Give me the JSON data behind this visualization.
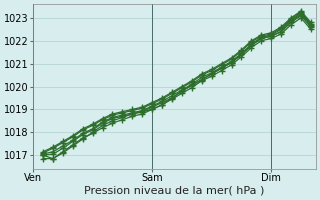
{
  "title": "Pression niveau de la mer( hPa )",
  "bg_color": "#cce8e8",
  "plot_bg": "#d8eeee",
  "grid_color": "#b0d0d0",
  "line_color": "#2d6e2d",
  "ylim": [
    1016.4,
    1023.6
  ],
  "yticks": [
    1017,
    1018,
    1019,
    1020,
    1021,
    1022,
    1023
  ],
  "tick_fontsize": 7,
  "xlabel_fontsize": 8,
  "day_labels": [
    "Ven",
    "Sam",
    "Dim"
  ],
  "day_positions": [
    0,
    48,
    96
  ],
  "total_hours": 114,
  "lines": [
    {
      "x": [
        4,
        8,
        12,
        16,
        20,
        24,
        28,
        32,
        36,
        40,
        44,
        48,
        52,
        56,
        60,
        64,
        68,
        72,
        76,
        80,
        84,
        88,
        92,
        96,
        100,
        104,
        108,
        112
      ],
      "y": [
        1016.85,
        1016.85,
        1017.1,
        1017.4,
        1017.7,
        1018.0,
        1018.3,
        1018.5,
        1018.65,
        1018.8,
        1018.9,
        1019.0,
        1019.2,
        1019.5,
        1019.8,
        1020.05,
        1020.3,
        1020.55,
        1020.8,
        1021.05,
        1021.4,
        1021.8,
        1022.1,
        1022.2,
        1022.4,
        1022.8,
        1023.1,
        1022.6
      ]
    },
    {
      "x": [
        4,
        8,
        12,
        16,
        20,
        24,
        28,
        32,
        36,
        40,
        44,
        48,
        52,
        56,
        60,
        64,
        68,
        72,
        76,
        80,
        84,
        88,
        92,
        96,
        100,
        104,
        108,
        112
      ],
      "y": [
        1017.0,
        1017.05,
        1017.3,
        1017.6,
        1017.9,
        1018.1,
        1018.4,
        1018.6,
        1018.7,
        1018.8,
        1018.9,
        1019.1,
        1019.3,
        1019.5,
        1019.8,
        1020.05,
        1020.3,
        1020.55,
        1020.8,
        1021.05,
        1021.4,
        1021.8,
        1022.1,
        1022.2,
        1022.4,
        1022.85,
        1023.15,
        1022.65
      ]
    },
    {
      "x": [
        4,
        8,
        12,
        16,
        20,
        24,
        28,
        32,
        36,
        40,
        44,
        48,
        52,
        56,
        60,
        64,
        68,
        72,
        76,
        80,
        84,
        88,
        92,
        96,
        100,
        104,
        108,
        112
      ],
      "y": [
        1017.05,
        1017.15,
        1017.4,
        1017.65,
        1017.95,
        1018.15,
        1018.45,
        1018.65,
        1018.75,
        1018.85,
        1018.95,
        1019.15,
        1019.35,
        1019.6,
        1019.85,
        1020.1,
        1020.4,
        1020.6,
        1020.85,
        1021.1,
        1021.45,
        1021.85,
        1022.15,
        1022.25,
        1022.5,
        1022.9,
        1023.2,
        1022.7
      ]
    },
    {
      "x": [
        4,
        8,
        12,
        16,
        20,
        24,
        28,
        32,
        36,
        40,
        44,
        48,
        52,
        56,
        60,
        64,
        68,
        72,
        76,
        80,
        84,
        88,
        92,
        96,
        100,
        104,
        108,
        112
      ],
      "y": [
        1017.1,
        1017.3,
        1017.55,
        1017.8,
        1018.1,
        1018.3,
        1018.55,
        1018.75,
        1018.85,
        1018.95,
        1019.05,
        1019.25,
        1019.45,
        1019.7,
        1019.95,
        1020.2,
        1020.5,
        1020.7,
        1020.95,
        1021.2,
        1021.55,
        1021.95,
        1022.2,
        1022.3,
        1022.55,
        1022.95,
        1023.25,
        1022.75
      ]
    },
    {
      "x": [
        4,
        8,
        12,
        16,
        20,
        24,
        28,
        32,
        36,
        40,
        44,
        48,
        52,
        56,
        60,
        64,
        68,
        72,
        76,
        80,
        84,
        88,
        92,
        96,
        100,
        104,
        108,
        112
      ],
      "y": [
        1017.15,
        1017.35,
        1017.6,
        1017.85,
        1018.15,
        1018.35,
        1018.6,
        1018.8,
        1018.9,
        1019.0,
        1019.1,
        1019.3,
        1019.5,
        1019.75,
        1020.0,
        1020.25,
        1020.55,
        1020.75,
        1021.0,
        1021.25,
        1021.6,
        1022.0,
        1022.25,
        1022.35,
        1022.6,
        1023.0,
        1023.3,
        1022.8
      ]
    },
    {
      "x": [
        4,
        8,
        12,
        16,
        20,
        24,
        28,
        32,
        36,
        40,
        44,
        48,
        52,
        56,
        60,
        64,
        68,
        72,
        76,
        80,
        84,
        88,
        92,
        96,
        100,
        104,
        108,
        112
      ],
      "y": [
        1017.0,
        1016.85,
        1017.15,
        1017.45,
        1017.75,
        1017.95,
        1018.2,
        1018.4,
        1018.55,
        1018.7,
        1018.8,
        1019.0,
        1019.2,
        1019.45,
        1019.7,
        1019.95,
        1020.25,
        1020.45,
        1020.7,
        1020.95,
        1021.3,
        1021.7,
        1022.0,
        1022.1,
        1022.3,
        1022.7,
        1023.0,
        1022.5
      ]
    }
  ]
}
